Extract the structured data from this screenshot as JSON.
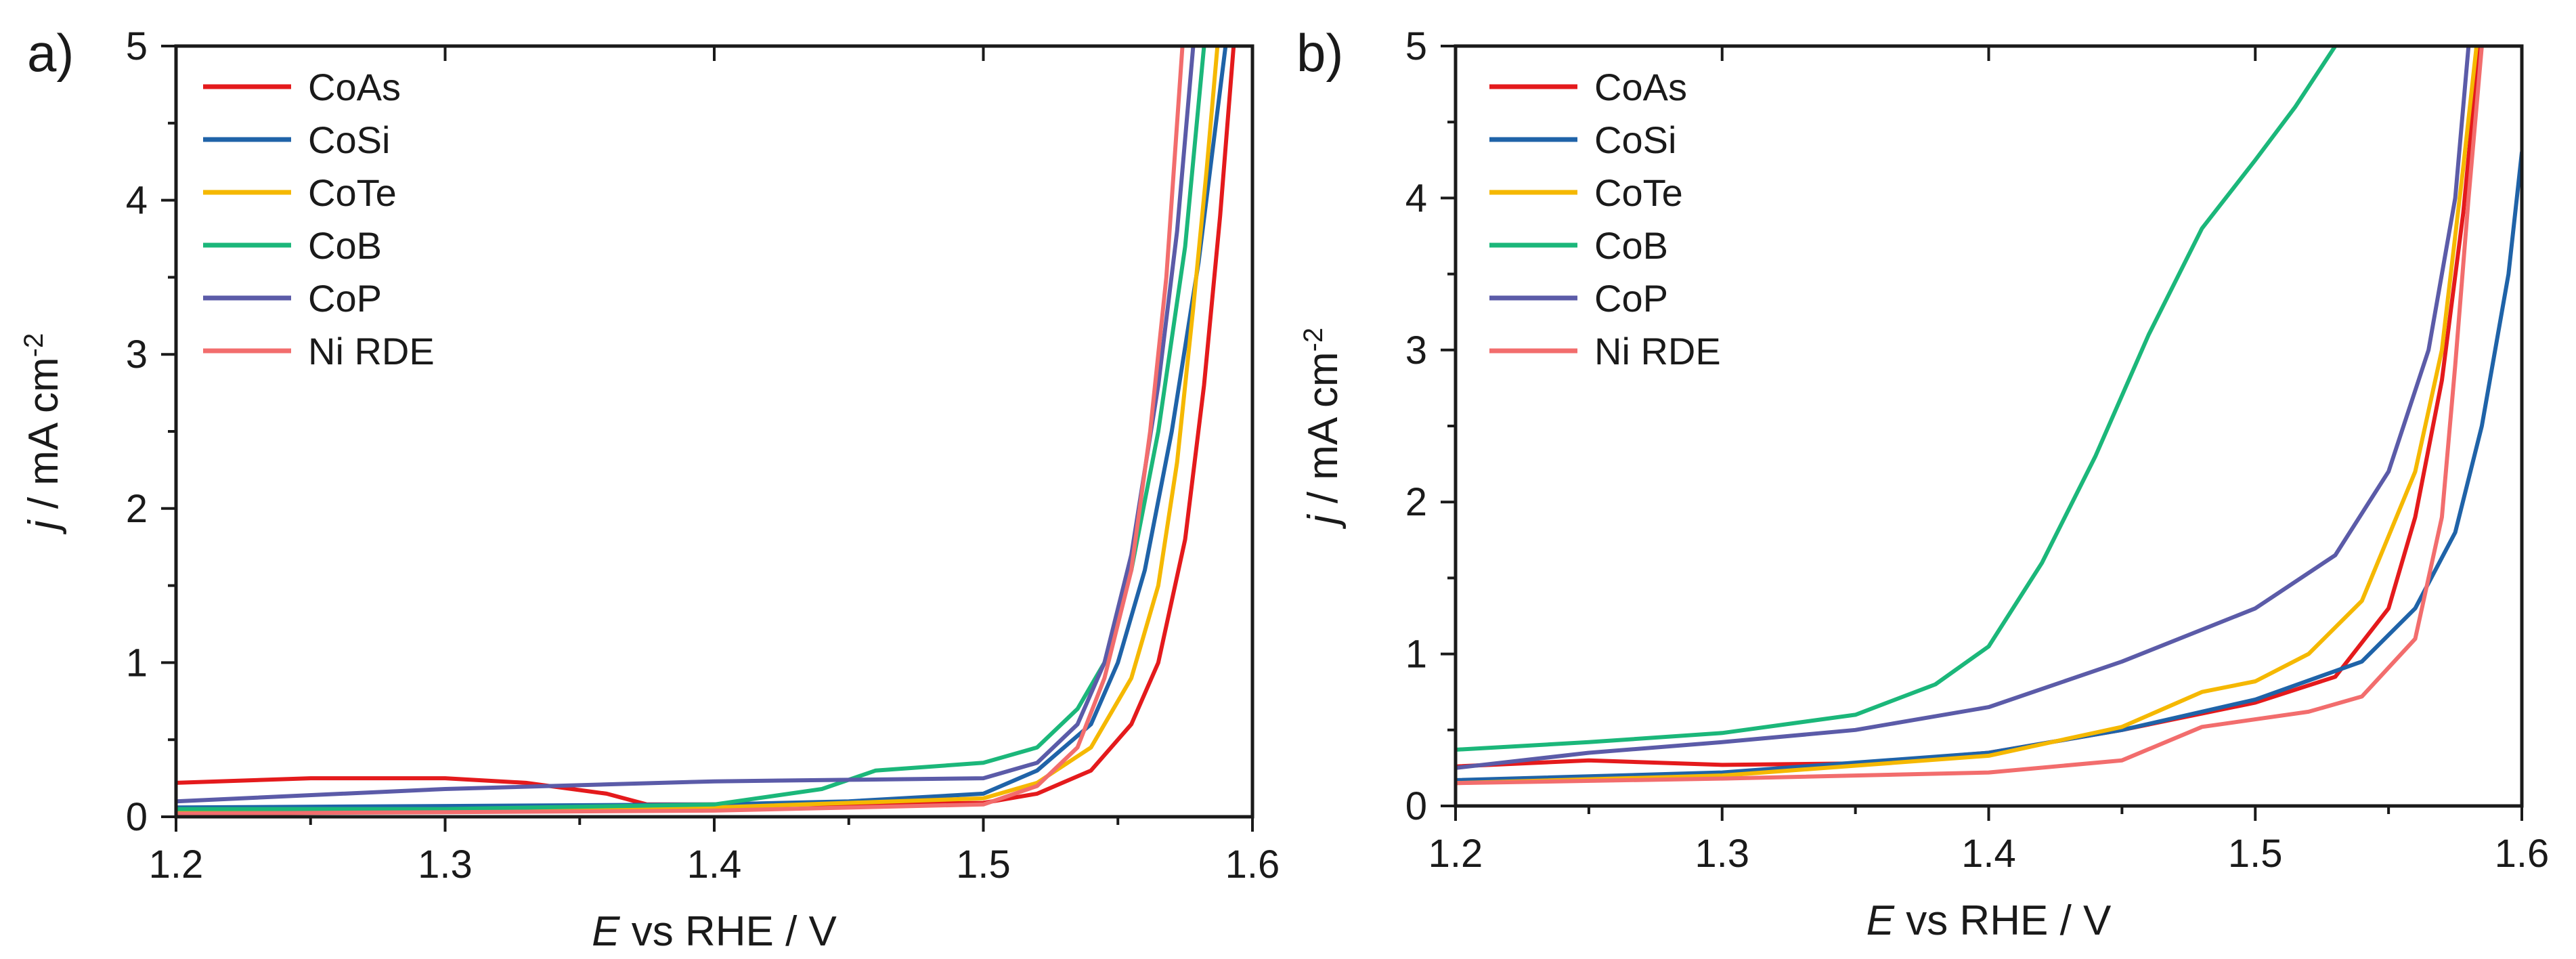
{
  "chart_data": [
    {
      "panel_label": "a)",
      "type": "line",
      "xlabel": {
        "italic": "E",
        "rest": " vs  RHE / V"
      },
      "ylabel": {
        "italic": "j",
        "rest": " / mA cm",
        "sup": "-2"
      },
      "xlim": [
        1.2,
        1.6
      ],
      "ylim": [
        0,
        5
      ],
      "xticks": [
        "1.2",
        "1.3",
        "1.4",
        "1.5",
        "1.6"
      ],
      "yticks": [
        "0",
        "1",
        "2",
        "3",
        "4",
        "5"
      ],
      "legend_position": "top-left",
      "series": [
        {
          "name": "CoAs",
          "color": "#e41a1c",
          "points": [
            [
              1.2,
              0.22
            ],
            [
              1.25,
              0.25
            ],
            [
              1.3,
              0.25
            ],
            [
              1.33,
              0.22
            ],
            [
              1.36,
              0.15
            ],
            [
              1.375,
              0.08
            ],
            [
              1.4,
              0.08
            ],
            [
              1.45,
              0.08
            ],
            [
              1.5,
              0.09
            ],
            [
              1.52,
              0.15
            ],
            [
              1.54,
              0.3
            ],
            [
              1.555,
              0.6
            ],
            [
              1.565,
              1.0
            ],
            [
              1.575,
              1.8
            ],
            [
              1.582,
              2.8
            ],
            [
              1.588,
              3.9
            ],
            [
              1.593,
              5.0
            ]
          ]
        },
        {
          "name": "CoSi",
          "color": "#1f63a8",
          "points": [
            [
              1.2,
              0.06
            ],
            [
              1.3,
              0.07
            ],
            [
              1.4,
              0.08
            ],
            [
              1.45,
              0.1
            ],
            [
              1.5,
              0.15
            ],
            [
              1.52,
              0.3
            ],
            [
              1.54,
              0.6
            ],
            [
              1.55,
              1.0
            ],
            [
              1.56,
              1.6
            ],
            [
              1.57,
              2.5
            ],
            [
              1.58,
              3.6
            ],
            [
              1.59,
              5.0
            ]
          ]
        },
        {
          "name": "CoTe",
          "color": "#f5b800",
          "points": [
            [
              1.2,
              0.03
            ],
            [
              1.3,
              0.04
            ],
            [
              1.4,
              0.06
            ],
            [
              1.5,
              0.12
            ],
            [
              1.52,
              0.22
            ],
            [
              1.54,
              0.45
            ],
            [
              1.555,
              0.9
            ],
            [
              1.565,
              1.5
            ],
            [
              1.572,
              2.3
            ],
            [
              1.578,
              3.3
            ],
            [
              1.583,
              4.2
            ],
            [
              1.587,
              5.0
            ]
          ]
        },
        {
          "name": "CoB",
          "color": "#1bb77a",
          "points": [
            [
              1.2,
              0.05
            ],
            [
              1.3,
              0.05
            ],
            [
              1.4,
              0.08
            ],
            [
              1.44,
              0.18
            ],
            [
              1.46,
              0.3
            ],
            [
              1.5,
              0.35
            ],
            [
              1.52,
              0.45
            ],
            [
              1.535,
              0.7
            ],
            [
              1.545,
              1.0
            ],
            [
              1.555,
              1.6
            ],
            [
              1.565,
              2.5
            ],
            [
              1.575,
              3.7
            ],
            [
              1.582,
              5.0
            ]
          ]
        },
        {
          "name": "CoP",
          "color": "#5b5ba8",
          "points": [
            [
              1.2,
              0.1
            ],
            [
              1.3,
              0.18
            ],
            [
              1.4,
              0.23
            ],
            [
              1.45,
              0.24
            ],
            [
              1.5,
              0.25
            ],
            [
              1.52,
              0.35
            ],
            [
              1.535,
              0.6
            ],
            [
              1.545,
              1.0
            ],
            [
              1.555,
              1.7
            ],
            [
              1.565,
              2.8
            ],
            [
              1.572,
              3.8
            ],
            [
              1.578,
              5.0
            ]
          ]
        },
        {
          "name": "Ni RDE",
          "color": "#f26d6d",
          "points": [
            [
              1.2,
              0.02
            ],
            [
              1.3,
              0.03
            ],
            [
              1.4,
              0.04
            ],
            [
              1.5,
              0.08
            ],
            [
              1.52,
              0.2
            ],
            [
              1.535,
              0.45
            ],
            [
              1.545,
              0.9
            ],
            [
              1.555,
              1.6
            ],
            [
              1.562,
              2.5
            ],
            [
              1.568,
              3.5
            ],
            [
              1.574,
              5.0
            ]
          ]
        }
      ]
    },
    {
      "panel_label": "b)",
      "type": "line",
      "xlabel": {
        "italic": "E",
        "rest": " vs  RHE / V"
      },
      "ylabel": {
        "italic": "j",
        "rest": " / mA cm",
        "sup": "-2"
      },
      "xlim": [
        1.2,
        1.6
      ],
      "ylim": [
        0,
        5
      ],
      "xticks": [
        "1.2",
        "1.3",
        "1.4",
        "1.5",
        "1.6"
      ],
      "yticks": [
        "0",
        "1",
        "2",
        "3",
        "4",
        "5"
      ],
      "legend_position": "top-left",
      "series": [
        {
          "name": "CoAs",
          "color": "#e41a1c",
          "points": [
            [
              1.2,
              0.26
            ],
            [
              1.25,
              0.3
            ],
            [
              1.3,
              0.27
            ],
            [
              1.35,
              0.28
            ],
            [
              1.4,
              0.35
            ],
            [
              1.45,
              0.5
            ],
            [
              1.5,
              0.68
            ],
            [
              1.53,
              0.85
            ],
            [
              1.55,
              1.3
            ],
            [
              1.56,
              1.9
            ],
            [
              1.57,
              2.8
            ],
            [
              1.578,
              3.9
            ],
            [
              1.584,
              5.0
            ]
          ]
        },
        {
          "name": "CoSi",
          "color": "#1f63a8",
          "points": [
            [
              1.2,
              0.17
            ],
            [
              1.3,
              0.22
            ],
            [
              1.4,
              0.35
            ],
            [
              1.45,
              0.5
            ],
            [
              1.5,
              0.7
            ],
            [
              1.54,
              0.95
            ],
            [
              1.56,
              1.3
            ],
            [
              1.575,
              1.8
            ],
            [
              1.585,
              2.5
            ],
            [
              1.595,
              3.5
            ],
            [
              1.6,
              4.3
            ]
          ]
        },
        {
          "name": "CoTe",
          "color": "#f5b800",
          "points": [
            [
              1.2,
              0.15
            ],
            [
              1.3,
              0.2
            ],
            [
              1.4,
              0.33
            ],
            [
              1.45,
              0.52
            ],
            [
              1.48,
              0.75
            ],
            [
              1.5,
              0.82
            ],
            [
              1.52,
              1.0
            ],
            [
              1.54,
              1.35
            ],
            [
              1.56,
              2.2
            ],
            [
              1.57,
              3.0
            ],
            [
              1.578,
              4.2
            ],
            [
              1.583,
              5.0
            ]
          ]
        },
        {
          "name": "CoB",
          "color": "#1bb77a",
          "points": [
            [
              1.2,
              0.37
            ],
            [
              1.25,
              0.42
            ],
            [
              1.3,
              0.48
            ],
            [
              1.35,
              0.6
            ],
            [
              1.38,
              0.8
            ],
            [
              1.4,
              1.05
            ],
            [
              1.42,
              1.6
            ],
            [
              1.44,
              2.3
            ],
            [
              1.46,
              3.1
            ],
            [
              1.48,
              3.8
            ],
            [
              1.5,
              4.25
            ],
            [
              1.515,
              4.6
            ],
            [
              1.53,
              5.0
            ]
          ]
        },
        {
          "name": "CoP",
          "color": "#5b5ba8",
          "points": [
            [
              1.2,
              0.25
            ],
            [
              1.25,
              0.35
            ],
            [
              1.3,
              0.42
            ],
            [
              1.35,
              0.5
            ],
            [
              1.4,
              0.65
            ],
            [
              1.45,
              0.95
            ],
            [
              1.5,
              1.3
            ],
            [
              1.53,
              1.65
            ],
            [
              1.55,
              2.2
            ],
            [
              1.565,
              3.0
            ],
            [
              1.575,
              4.0
            ],
            [
              1.58,
              5.0
            ]
          ]
        },
        {
          "name": "Ni RDE",
          "color": "#f26d6d",
          "points": [
            [
              1.2,
              0.15
            ],
            [
              1.3,
              0.18
            ],
            [
              1.4,
              0.22
            ],
            [
              1.45,
              0.3
            ],
            [
              1.48,
              0.52
            ],
            [
              1.52,
              0.62
            ],
            [
              1.54,
              0.72
            ],
            [
              1.56,
              1.1
            ],
            [
              1.57,
              1.9
            ],
            [
              1.575,
              2.9
            ],
            [
              1.58,
              4.0
            ],
            [
              1.585,
              5.0
            ]
          ]
        }
      ]
    }
  ]
}
